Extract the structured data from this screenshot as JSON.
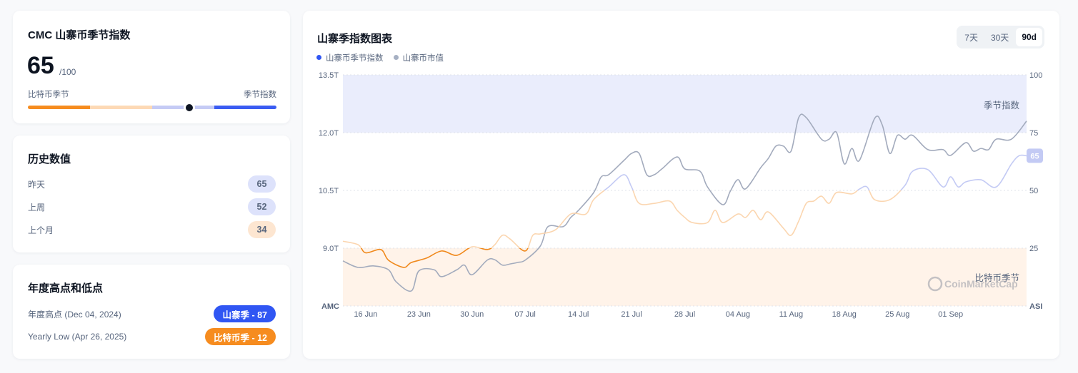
{
  "gauge_card": {
    "title": "CMC 山寨币季节指数",
    "value": "65",
    "max_label": "/100",
    "left_label": "比特币季节",
    "right_label": "季节指数",
    "value_percent": 65,
    "segment_colors": [
      "#f68c1f",
      "#fdd9b5",
      "#c5cbf5",
      "#3a5cf2"
    ]
  },
  "history_card": {
    "title": "历史数值",
    "rows": [
      {
        "label": "昨天",
        "value": "65",
        "color": "#dde2fb"
      },
      {
        "label": "上周",
        "value": "52",
        "color": "#dde2fb"
      },
      {
        "label": "上个月",
        "value": "34",
        "color": "#fde6d1"
      }
    ]
  },
  "yearly_card": {
    "title": "年度高点和低点",
    "rows": [
      {
        "label": "年度高点 (Dec 04, 2024)",
        "tag": "山寨季 - 87",
        "color": "#3056f3"
      },
      {
        "label": "Yearly Low (Apr 26, 2025)",
        "tag": "比特币季 - 12",
        "color": "#f68c1f"
      }
    ]
  },
  "chart_card": {
    "title": "山寨季指数图表",
    "ranges": [
      {
        "label": "7天",
        "active": false
      },
      {
        "label": "30天",
        "active": false
      },
      {
        "label": "90d",
        "active": true
      }
    ],
    "legend": [
      {
        "label": "山寨币季节指数",
        "color": "#3056f3"
      },
      {
        "label": "山寨币市值",
        "color": "#a6b0c3"
      }
    ],
    "watermark": "CoinMarketCap"
  },
  "chart_data": {
    "type": "line",
    "x_ticks": [
      "16 Jun",
      "23 Jun",
      "30 Jun",
      "07 Jul",
      "14 Jul",
      "21 Jul",
      "28 Jul",
      "04 Aug",
      "11 Aug",
      "18 Aug",
      "25 Aug",
      "01 Sep"
    ],
    "x_range": [
      "Jun 13",
      "Sep 11"
    ],
    "left_axis": {
      "label": "AMC",
      "ticks": [
        "13.5T",
        "12.0T",
        "10.5T",
        "9.0T"
      ],
      "range": [
        7.5,
        13.5
      ],
      "unit": "T"
    },
    "right_axis": {
      "label": "ASI",
      "ticks": [
        "100",
        "75",
        "50",
        "25"
      ],
      "range": [
        0,
        100
      ]
    },
    "bands": [
      {
        "label": "季节指数",
        "from": 75,
        "to": 100,
        "color": "#eaedfc"
      },
      {
        "label": "比特币季节",
        "from": 0,
        "to": 25,
        "color": "#fff3e9"
      }
    ],
    "current_label": "65",
    "series": [
      {
        "name": "山寨币季节指数",
        "axis": "right",
        "points": [
          [
            "Jun 13",
            28
          ],
          [
            "Jun 15",
            26.5
          ],
          [
            "Jun 16",
            23
          ],
          [
            "Jun 18",
            24.4
          ],
          [
            "Jun 19",
            19.8
          ],
          [
            "Jun 21",
            16.7
          ],
          [
            "Jun 22",
            18.8
          ],
          [
            "Jun 24",
            20.7
          ],
          [
            "Jun 26",
            23.8
          ],
          [
            "Jun 28",
            21.9
          ],
          [
            "Jun 30",
            25.6
          ],
          [
            "Jul 2",
            24.4
          ],
          [
            "Jul 3",
            26.5
          ],
          [
            "Jul 4",
            30.6
          ],
          [
            "Jul 5",
            29
          ],
          [
            "Jul 7",
            23.8
          ],
          [
            "Jul 8",
            30.6
          ],
          [
            "Jul 9",
            31.2
          ],
          [
            "Jul 11",
            33
          ],
          [
            "Jul 13",
            39.8
          ],
          [
            "Jul 15",
            39.8
          ],
          [
            "Jul 16",
            46
          ],
          [
            "Jul 18",
            51.5
          ],
          [
            "Jul 20",
            56.8
          ],
          [
            "Jul 21",
            51.5
          ],
          [
            "Jul 22",
            44.4
          ],
          [
            "Jul 24",
            44.4
          ],
          [
            "Jul 26",
            45.4
          ],
          [
            "Jul 27",
            41.4
          ],
          [
            "Jul 28",
            38.3
          ],
          [
            "Jul 29",
            36.1
          ],
          [
            "Jul 31",
            36.1
          ],
          [
            "Aug 1",
            41.4
          ],
          [
            "Aug 2",
            36.1
          ],
          [
            "Aug 4",
            39.8
          ],
          [
            "Aug 5",
            38.3
          ],
          [
            "Aug 6",
            41.4
          ],
          [
            "Aug 7",
            37.3
          ],
          [
            "Aug 8",
            40.7
          ],
          [
            "Aug 10",
            33.6
          ],
          [
            "Aug 11",
            30.6
          ],
          [
            "Aug 12",
            36.7
          ],
          [
            "Aug 13",
            44.4
          ],
          [
            "Aug 14",
            45.4
          ],
          [
            "Aug 15",
            47.5
          ],
          [
            "Aug 16",
            44.4
          ],
          [
            "Aug 17",
            49.1
          ],
          [
            "Aug 19",
            48.5
          ],
          [
            "Aug 20",
            50.6
          ],
          [
            "Aug 21",
            51.5
          ],
          [
            "Aug 22",
            46
          ],
          [
            "Aug 24",
            46
          ],
          [
            "Aug 26",
            52.2
          ],
          [
            "Aug 27",
            58.3
          ],
          [
            "Aug 29",
            59
          ],
          [
            "Aug 31",
            51.5
          ],
          [
            "Sep 1",
            55.9
          ],
          [
            "Sep 2",
            51.5
          ],
          [
            "Sep 3",
            53.7
          ],
          [
            "Sep 5",
            54.6
          ],
          [
            "Sep 7",
            51.5
          ],
          [
            "Sep 9",
            61.4
          ],
          [
            "Sep 10",
            65
          ],
          [
            "Sep 11",
            65
          ]
        ]
      },
      {
        "name": "山寨币市值",
        "axis": "left",
        "points": [
          [
            "Jun 13",
            8.67
          ],
          [
            "Jun 15",
            8.5
          ],
          [
            "Jun 17",
            8.54
          ],
          [
            "Jun 19",
            8.44
          ],
          [
            "Jun 20",
            8.13
          ],
          [
            "Jun 22",
            7.89
          ],
          [
            "Jun 23",
            8.41
          ],
          [
            "Jun 25",
            8.44
          ],
          [
            "Jun 26",
            8.26
          ],
          [
            "Jun 28",
            8.44
          ],
          [
            "Jun 29",
            8.56
          ],
          [
            "Jun 30",
            8.31
          ],
          [
            "Jul 2",
            8.69
          ],
          [
            "Jul 3",
            8.7
          ],
          [
            "Jul 4",
            8.56
          ],
          [
            "Jul 5",
            8.59
          ],
          [
            "Jul 6",
            8.63
          ],
          [
            "Jul 7",
            8.69
          ],
          [
            "Jul 9",
            9.06
          ],
          [
            "Jul 10",
            9.56
          ],
          [
            "Jul 12",
            9.56
          ],
          [
            "Jul 13",
            9.8
          ],
          [
            "Jul 14",
            9.98
          ],
          [
            "Jul 16",
            10.44
          ],
          [
            "Jul 17",
            10.85
          ],
          [
            "Jul 18",
            10.91
          ],
          [
            "Jul 20",
            11.28
          ],
          [
            "Jul 21",
            11.46
          ],
          [
            "Jul 22",
            11.46
          ],
          [
            "Jul 23",
            10.91
          ],
          [
            "Jul 24",
            10.91
          ],
          [
            "Jul 25",
            11.06
          ],
          [
            "Jul 27",
            11.37
          ],
          [
            "Jul 28",
            11.06
          ],
          [
            "Jul 30",
            11.0
          ],
          [
            "Jul 31",
            10.59
          ],
          [
            "Aug 2",
            10.13
          ],
          [
            "Aug 3",
            10.48
          ],
          [
            "Aug 4",
            10.78
          ],
          [
            "Aug 5",
            10.54
          ],
          [
            "Aug 7",
            11.09
          ],
          [
            "Aug 8",
            11.33
          ],
          [
            "Aug 9",
            11.65
          ],
          [
            "Aug 10",
            11.65
          ],
          [
            "Aug 11",
            11.52
          ],
          [
            "Aug 12",
            12.39
          ],
          [
            "Aug 13",
            12.39
          ],
          [
            "Aug 15",
            11.83
          ],
          [
            "Aug 16",
            11.83
          ],
          [
            "Aug 17",
            12.0
          ],
          [
            "Aug 18",
            11.19
          ],
          [
            "Aug 19",
            11.59
          ],
          [
            "Aug 20",
            11.28
          ],
          [
            "Aug 22",
            12.37
          ],
          [
            "Aug 23",
            12.2
          ],
          [
            "Aug 24",
            11.46
          ],
          [
            "Aug 25",
            11.93
          ],
          [
            "Aug 26",
            11.83
          ],
          [
            "Aug 27",
            11.93
          ],
          [
            "Aug 29",
            11.56
          ],
          [
            "Aug 31",
            11.56
          ],
          [
            "Sep 1",
            11.41
          ],
          [
            "Sep 3",
            11.74
          ],
          [
            "Sep 4",
            11.52
          ],
          [
            "Sep 5",
            11.59
          ],
          [
            "Sep 6",
            11.56
          ],
          [
            "Sep 7",
            11.83
          ],
          [
            "Sep 9",
            11.83
          ],
          [
            "Sep 11",
            12.3
          ]
        ]
      }
    ]
  }
}
